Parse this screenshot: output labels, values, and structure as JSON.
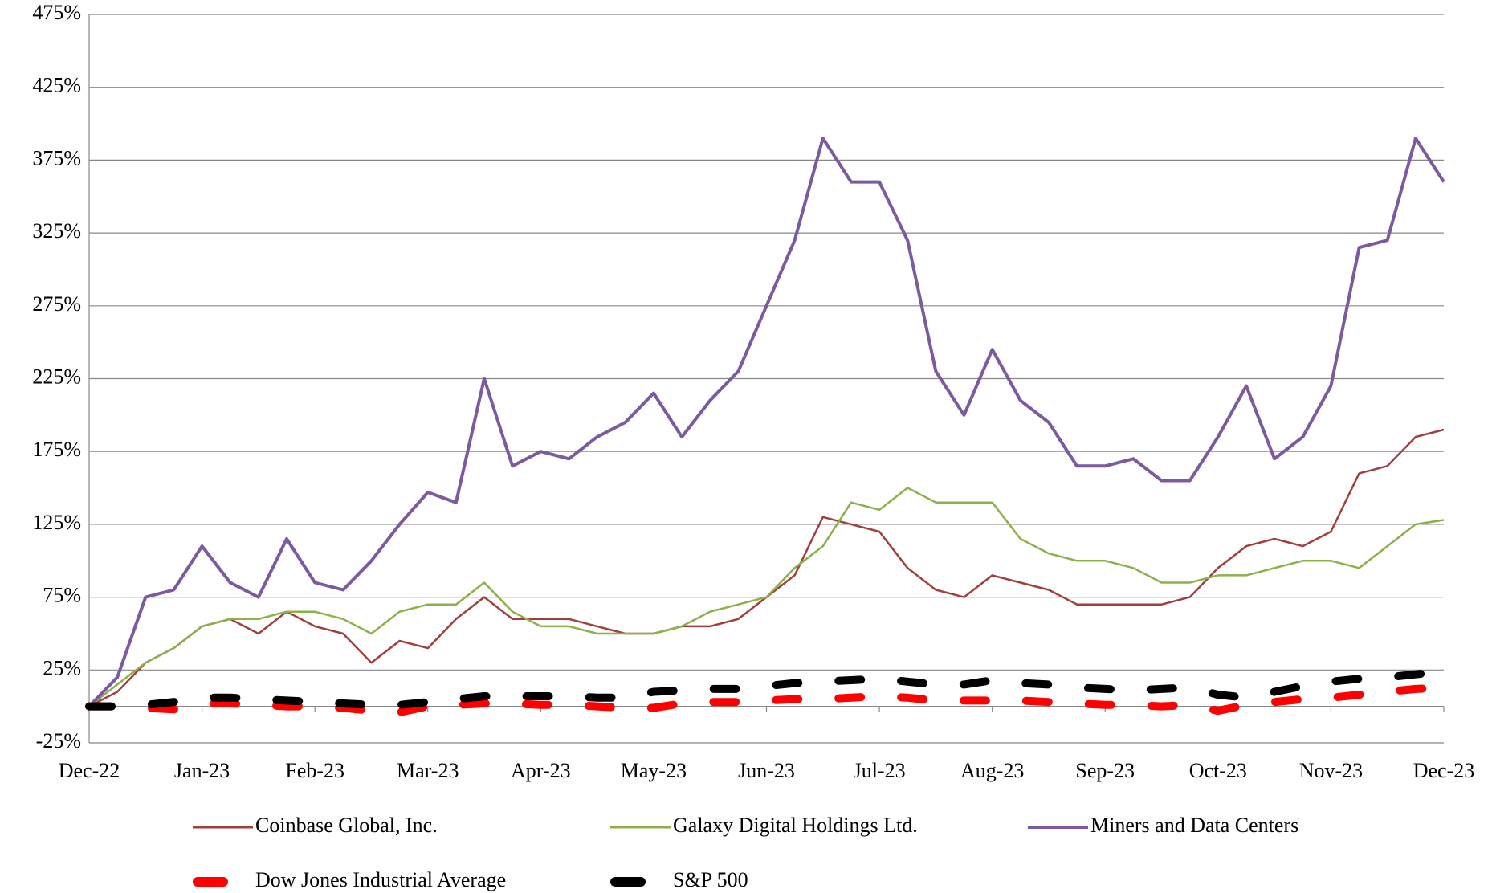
{
  "chart_data": {
    "type": "line",
    "categories": [
      "Dec-22",
      null,
      null,
      null,
      "Jan-23",
      null,
      null,
      null,
      "Feb-23",
      null,
      null,
      null,
      "Mar-23",
      null,
      null,
      null,
      "Apr-23",
      null,
      null,
      null,
      "May-23",
      null,
      null,
      null,
      "Jun-23",
      null,
      null,
      null,
      "Jul-23",
      null,
      null,
      null,
      "Aug-23",
      null,
      null,
      null,
      "Sep-23",
      null,
      null,
      null,
      "Oct-23",
      null,
      null,
      null,
      "Nov-23",
      null,
      null,
      null,
      "Dec-23"
    ],
    "ylim": [
      -25,
      475
    ],
    "yticks": [
      {
        "value": -25,
        "label": "-25%"
      },
      {
        "value": 25,
        "label": "25%"
      },
      {
        "value": 75,
        "label": "75%"
      },
      {
        "value": 125,
        "label": "125%"
      },
      {
        "value": 175,
        "label": "175%"
      },
      {
        "value": 225,
        "label": "225%"
      },
      {
        "value": 275,
        "label": "275%"
      },
      {
        "value": 325,
        "label": "325%"
      },
      {
        "value": 375,
        "label": "375%"
      },
      {
        "value": 425,
        "label": "425%"
      },
      {
        "value": 475,
        "label": "475%"
      }
    ],
    "grid": true,
    "series": [
      {
        "name": "Coinbase Global, Inc.",
        "color": "#a0403e",
        "dashed": false,
        "values": [
          0,
          10,
          30,
          40,
          55,
          60,
          50,
          65,
          55,
          50,
          30,
          45,
          40,
          60,
          75,
          60,
          60,
          60,
          55,
          50,
          50,
          55,
          55,
          60,
          75,
          90,
          130,
          125,
          120,
          95,
          80,
          75,
          90,
          85,
          80,
          70,
          70,
          70,
          70,
          75,
          95,
          110,
          115,
          110,
          120,
          160,
          165,
          185,
          190
        ]
      },
      {
        "name": "Galaxy Digital Holdings Ltd.",
        "color": "#8cb04a",
        "dashed": false,
        "values": [
          0,
          15,
          30,
          40,
          55,
          60,
          60,
          65,
          65,
          60,
          50,
          65,
          70,
          70,
          85,
          65,
          55,
          55,
          50,
          50,
          50,
          55,
          65,
          70,
          75,
          95,
          110,
          140,
          135,
          150,
          140,
          140,
          140,
          115,
          105,
          100,
          100,
          95,
          85,
          85,
          90,
          90,
          95,
          100,
          100,
          95,
          110,
          125,
          128
        ]
      },
      {
        "name": "Miners and Data Centers",
        "color": "#7b5aa0",
        "dashed": false,
        "values": [
          0,
          20,
          75,
          80,
          110,
          85,
          75,
          115,
          85,
          80,
          100,
          125,
          147,
          140,
          225,
          165,
          175,
          170,
          185,
          195,
          215,
          185,
          210,
          230,
          275,
          320,
          390,
          360,
          360,
          320,
          230,
          200,
          245,
          210,
          195,
          165,
          165,
          170,
          155,
          155,
          185,
          220,
          170,
          185,
          220,
          315,
          320,
          390,
          360
        ]
      },
      {
        "name": "Dow Jones Industrial Average",
        "color": "#ff0000",
        "dashed": true,
        "values": [
          0,
          0,
          -1,
          -2,
          2,
          2,
          1,
          0,
          0,
          -1,
          -3,
          -4,
          0,
          1,
          2,
          2,
          1,
          1,
          0,
          -1,
          -1,
          2,
          3,
          3,
          4,
          5,
          5,
          6,
          7,
          6,
          4,
          4,
          4,
          4,
          3,
          2,
          1,
          1,
          0,
          1,
          -3,
          1,
          3,
          5,
          6,
          8,
          10,
          12,
          13
        ]
      },
      {
        "name": "S&P 500",
        "color": "#000000",
        "dashed": true,
        "values": [
          0,
          0,
          1,
          3,
          6,
          6,
          5,
          4,
          3,
          2,
          1,
          1,
          3,
          5,
          7,
          7,
          7,
          7,
          6,
          6,
          10,
          11,
          12,
          12,
          14,
          16,
          17,
          18,
          19,
          17,
          15,
          15,
          18,
          16,
          15,
          13,
          12,
          11,
          12,
          13,
          8,
          6,
          10,
          14,
          17,
          19,
          20,
          22,
          24
        ]
      }
    ]
  }
}
